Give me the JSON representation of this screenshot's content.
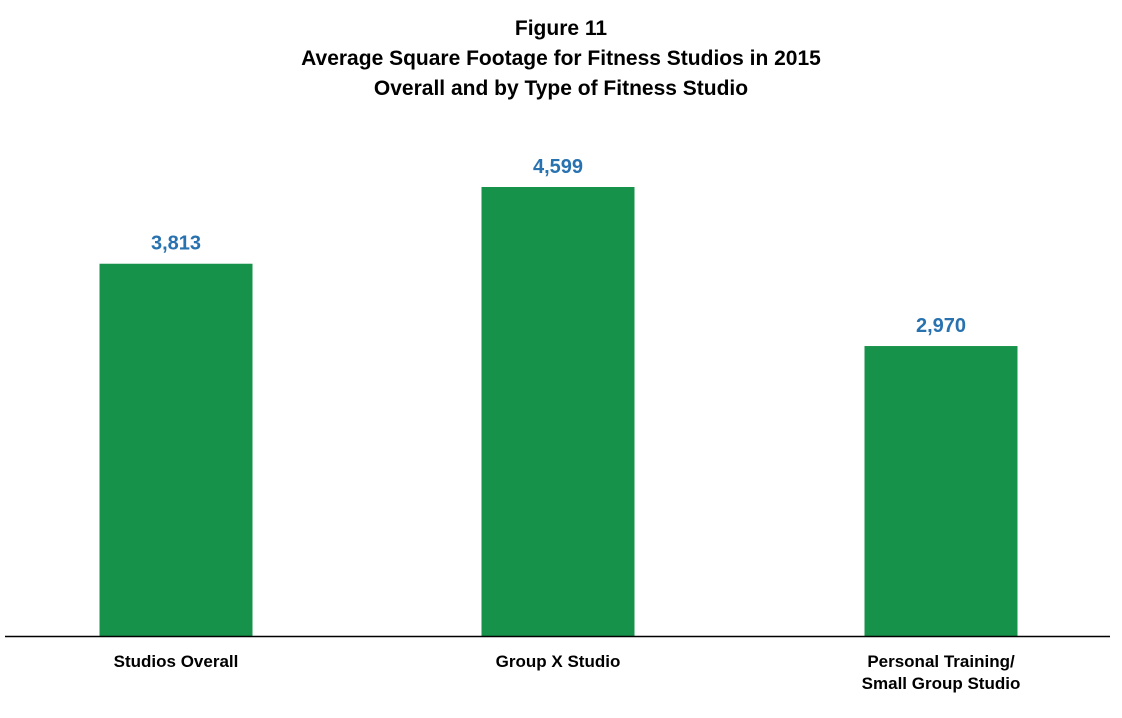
{
  "colors": {
    "bar": "#17924a",
    "value_label": "#2872b0",
    "axis": "#000000"
  },
  "chart_data": {
    "type": "bar",
    "title": "Figure 11",
    "subtitle_lines": [
      "Average Square Footage for Fitness Studios in 2015",
      "Overall and by Type of Fitness Studio"
    ],
    "categories": [
      [
        "Studios Overall"
      ],
      [
        "Group X Studio"
      ],
      [
        "Personal Training/",
        "Small Group Studio"
      ]
    ],
    "values": [
      3813,
      4599,
      2970
    ],
    "value_labels": [
      "3,813",
      "4,599",
      "2,970"
    ],
    "xlabel": "",
    "ylabel": "",
    "ylim": [
      0,
      5000
    ],
    "grid": false,
    "legend": "none"
  }
}
